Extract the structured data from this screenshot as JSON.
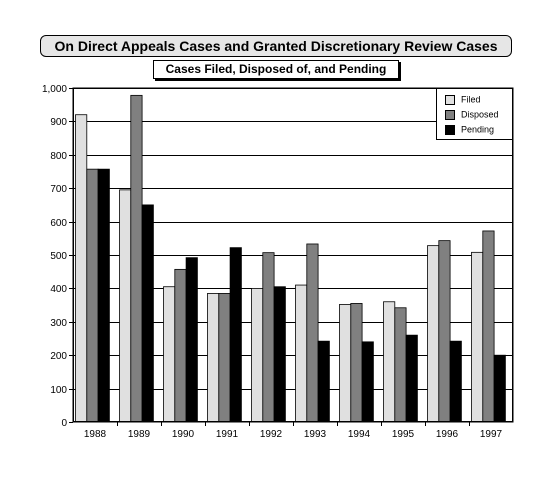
{
  "title": "On Direct Appeals Cases and Granted Discretionary Review Cases",
  "subtitle": "Cases Filed, Disposed of, and Pending",
  "colors": {
    "filed": "#e0e0e0",
    "disposed": "#808080",
    "pending": "#000000"
  },
  "legend": [
    {
      "label": "Filed",
      "color_key": "filed"
    },
    {
      "label": "Disposed",
      "color_key": "disposed"
    },
    {
      "label": "Pending",
      "color_key": "pending"
    }
  ],
  "chart_data": {
    "type": "bar",
    "title": "On Direct Appeals Cases and Granted Discretionary Review Cases",
    "subtitle": "Cases Filed, Disposed of, and Pending",
    "categories": [
      "1988",
      "1989",
      "1990",
      "1991",
      "1992",
      "1993",
      "1994",
      "1995",
      "1996",
      "1997"
    ],
    "series": [
      {
        "name": "Filed",
        "values": [
          920,
          695,
          405,
          385,
          400,
          410,
          352,
          360,
          528,
          508
        ]
      },
      {
        "name": "Disposed",
        "values": [
          757,
          978,
          457,
          385,
          507,
          533,
          355,
          342,
          543,
          572
        ]
      },
      {
        "name": "Pending",
        "values": [
          757,
          650,
          492,
          522,
          405,
          242,
          240,
          260,
          242,
          200
        ]
      }
    ],
    "ylim": [
      0,
      1000
    ],
    "yticks": [
      0,
      100,
      200,
      300,
      400,
      500,
      600,
      700,
      800,
      900,
      1000
    ],
    "ytick_labels": [
      "0",
      "100",
      "200",
      "300",
      "400",
      "500",
      "600",
      "700",
      "800",
      "900",
      "1,000"
    ],
    "grid": true,
    "legend_position": "top-right",
    "xlabel": "",
    "ylabel": ""
  }
}
